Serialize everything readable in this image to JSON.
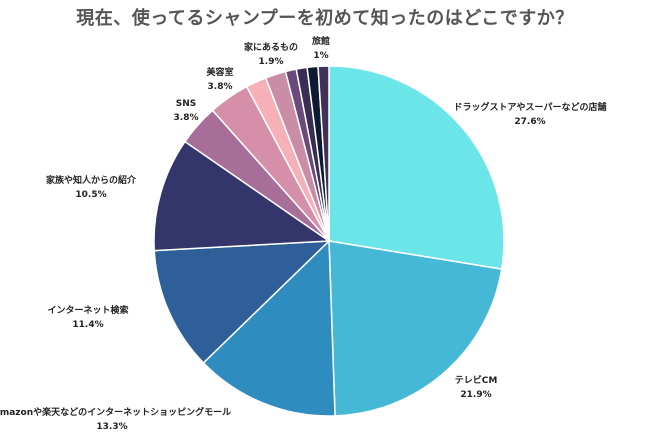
{
  "chart_data": {
    "type": "pie",
    "title": "現在、使ってるシャンプーを初めて知ったのはどこですか？",
    "start": "top",
    "direction": "clockwise",
    "slices": [
      {
        "label": "ドラッグストアやスーパーなどの店舗",
        "value": 27.6,
        "value_label": "27.6%",
        "color": "#6ce5e8"
      },
      {
        "label": "テレビCM",
        "value": 21.9,
        "value_label": "21.9%",
        "color": "#44b8d4"
      },
      {
        "label": "Amazonや楽天などのインターネットショッピングモール",
        "value": 13.3,
        "value_label": "13.3%",
        "color": "#2e8cbf"
      },
      {
        "label": "インターネット検索",
        "value": 11.4,
        "value_label": "11.4%",
        "color": "#2e5f99"
      },
      {
        "label": "家族や知人からの紹介",
        "value": 10.5,
        "value_label": "10.5%",
        "color": "#33356b"
      },
      {
        "label": "SNS",
        "value": 3.8,
        "value_label": "3.8%",
        "color": "#a66e98"
      },
      {
        "label": "美容室",
        "value": 3.8,
        "value_label": "3.8%",
        "color": "#d58fa8"
      },
      {
        "label": "",
        "value": 1.9,
        "value_label": "",
        "color": "#f6b0b8"
      },
      {
        "label": "家にあるもの",
        "value": 1.9,
        "value_label": "1.9%",
        "color": "#c98ea6"
      },
      {
        "label": "",
        "value": 1.0,
        "value_label": "",
        "color": "#6a4a7a"
      },
      {
        "label": "",
        "value": 1.0,
        "value_label": "",
        "color": "#3a2d55"
      },
      {
        "label": "",
        "value": 1.0,
        "value_label": "",
        "color": "#0d1a33"
      },
      {
        "label": "旅館",
        "value": 1.0,
        "value_label": "1%",
        "color": "#3f3256"
      }
    ]
  }
}
